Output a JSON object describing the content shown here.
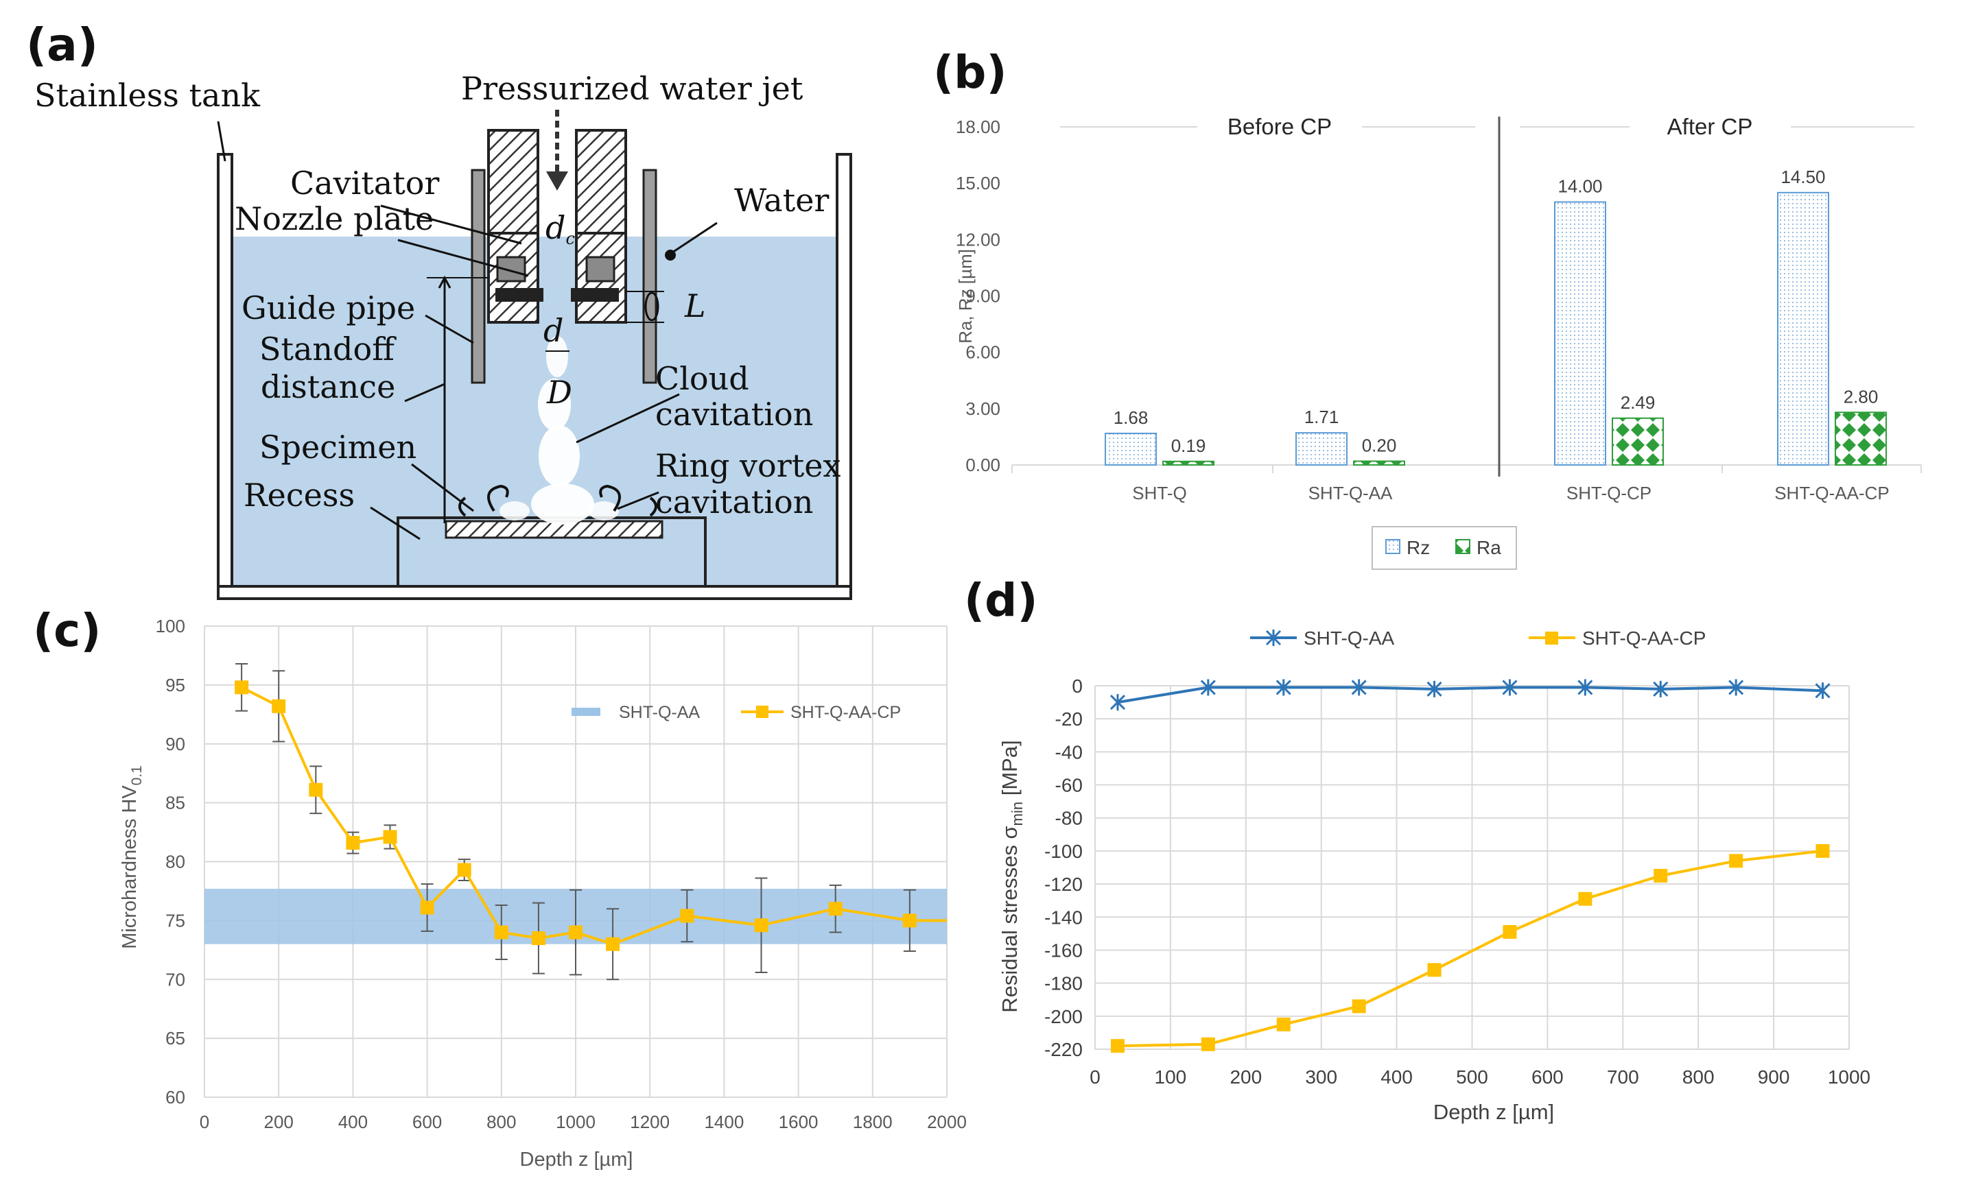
{
  "panels": {
    "a": "(a)",
    "b": "(b)",
    "c": "(c)",
    "d": "(d)"
  },
  "schematic": {
    "labels": {
      "stainless_tank": "Stainless tank",
      "water_jet": "Pressurized water jet",
      "cavitator": "Cavitator",
      "nozzle_plate": "Nozzle plate",
      "water": "Water",
      "guide_pipe": "Guide pipe",
      "standoff_1": "Standoff",
      "standoff_2": "distance",
      "cloud_1": "Cloud",
      "cloud_2": "cavitation",
      "specimen": "Specimen",
      "ring_1": "Ring vortex",
      "ring_2": "cavitation",
      "recess": "Recess",
      "sym_dc": "d",
      "sym_dc_sub": "c",
      "sym_L": "L",
      "sym_d": "d",
      "sym_D": "D"
    },
    "colors": {
      "water": "#bcd5ea",
      "hatch": "#333333",
      "tank": "#222222"
    }
  },
  "chart_data": [
    {
      "id": "b",
      "type": "bar",
      "title": "",
      "ylabel": "Ra, Rz [µm]",
      "xlabel": "",
      "ylim": [
        0,
        18
      ],
      "yticks": [
        "0.00",
        "3.00",
        "6.00",
        "9.00",
        "12.00",
        "15.00",
        "18.00"
      ],
      "segments": [
        "Before CP",
        "After CP"
      ],
      "categories": [
        "SHT-Q",
        "SHT-Q-AA",
        "SHT-Q-CP",
        "SHT-Q-AA-CP"
      ],
      "series": [
        {
          "name": "Rz",
          "values": [
            1.68,
            1.71,
            14.0,
            14.5
          ],
          "labels": [
            "1.68",
            "1.71",
            "14.00",
            "14.50"
          ],
          "color": "#5b9bd5"
        },
        {
          "name": "Ra",
          "values": [
            0.19,
            0.2,
            2.49,
            2.8
          ],
          "labels": [
            "0.19",
            "0.20",
            "2.49",
            "2.80"
          ],
          "color": "#2e9e3a"
        }
      ],
      "grid": false,
      "legend": "bottom"
    },
    {
      "id": "c",
      "type": "line",
      "xlabel": "Depth z [µm]",
      "ylabel_main": "Microhardness HV",
      "ylabel_sub": "0.1",
      "xlim": [
        0,
        2000
      ],
      "ylim": [
        60,
        100
      ],
      "xticks": [
        "0",
        "200",
        "400",
        "600",
        "800",
        "1000",
        "1200",
        "1400",
        "1600",
        "1800",
        "2000"
      ],
      "yticks": [
        "60",
        "65",
        "70",
        "75",
        "80",
        "85",
        "90",
        "95",
        "100"
      ],
      "band": {
        "name": "SHT-Q-AA",
        "low": 73.0,
        "high": 77.7,
        "color": "#9dc3e6"
      },
      "series": [
        {
          "name": "SHT-Q-AA-CP",
          "color": "#ffc000",
          "x": [
            100,
            200,
            300,
            400,
            500,
            600,
            700,
            800,
            900,
            1000,
            1100,
            1300,
            1500,
            1700,
            1900,
            2000
          ],
          "y": [
            94.8,
            93.2,
            86.1,
            81.6,
            82.1,
            76.1,
            79.3,
            74.0,
            73.5,
            74.0,
            73.0,
            75.4,
            74.6,
            76.0,
            75.0,
            75.0
          ],
          "err": [
            2.0,
            3.0,
            2.0,
            0.9,
            1.0,
            2.0,
            0.9,
            2.3,
            3.0,
            3.6,
            3.0,
            2.2,
            4.0,
            2.0,
            2.6,
            0
          ]
        }
      ],
      "grid": true,
      "legend": "top-right"
    },
    {
      "id": "d",
      "type": "line",
      "xlabel": "Depth z [µm]",
      "ylabel_main": "Residual stresses σ",
      "ylabel_sub": "min",
      "ylabel_tail": " [MPa]",
      "xlim": [
        0,
        1000
      ],
      "ylim": [
        -220,
        0
      ],
      "xticks": [
        "0",
        "100",
        "200",
        "300",
        "400",
        "500",
        "600",
        "700",
        "800",
        "900",
        "1000"
      ],
      "yticks": [
        "-220",
        "-200",
        "-180",
        "-160",
        "-140",
        "-120",
        "-100",
        "-80",
        "-60",
        "-40",
        "-20",
        "0"
      ],
      "series": [
        {
          "name": "SHT-Q-AA",
          "color": "#2e75b6",
          "marker": "star",
          "x": [
            30,
            150,
            250,
            350,
            450,
            550,
            650,
            750,
            850,
            965
          ],
          "y": [
            -10,
            -1,
            -1,
            -1,
            -2,
            -1,
            -1,
            -2,
            -1,
            -3
          ]
        },
        {
          "name": "SHT-Q-AA-CP",
          "color": "#ffc000",
          "marker": "square",
          "x": [
            30,
            150,
            250,
            350,
            450,
            550,
            650,
            750,
            850,
            965
          ],
          "y": [
            -218,
            -217,
            -205,
            -194,
            -172,
            -149,
            -129,
            -115,
            -106,
            -100
          ]
        }
      ],
      "grid": true,
      "legend": "top"
    }
  ]
}
